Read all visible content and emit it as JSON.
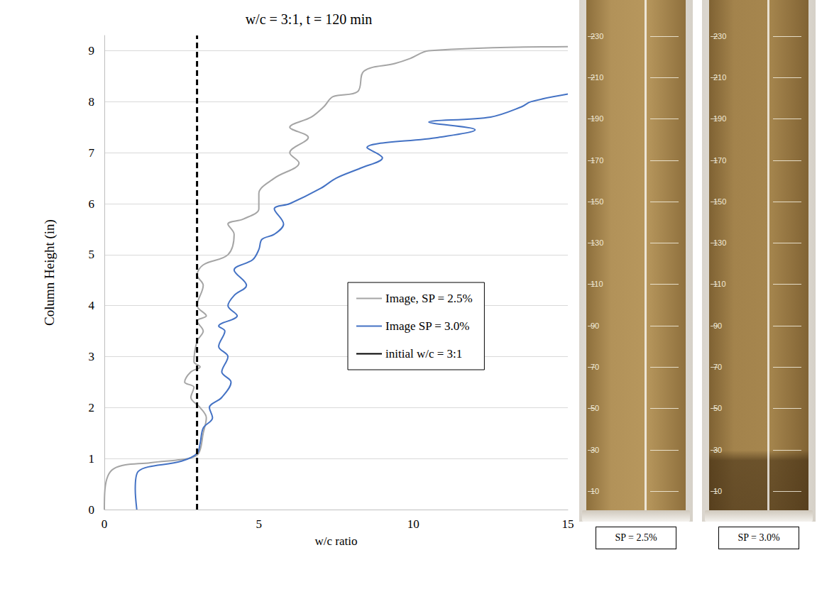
{
  "chart_data": {
    "type": "line",
    "title": "w/c = 3:1, t = 120 min",
    "x_label": "w/c ratio",
    "y_label": "Column Height (in)",
    "xlim": [
      0,
      15
    ],
    "xticks": [
      0,
      5,
      10,
      15
    ],
    "ylim": [
      0,
      9.3
    ],
    "yticks": [
      0,
      1,
      2,
      3,
      4,
      5,
      6,
      7,
      8,
      9
    ],
    "grid": true,
    "legend": "right",
    "series": [
      {
        "name": "Image, SP = 2.5%",
        "color": "#a5a5a5",
        "line_style": "solid",
        "x": [
          0,
          0.02,
          0.3,
          1.5,
          2.7,
          3.05,
          3.2,
          3.3,
          3.1,
          2.8,
          2.9,
          2.6,
          2.8,
          3.1,
          2.9,
          3.0,
          3.2,
          3.0,
          3.3,
          3.0,
          3.2,
          3.0,
          3.2,
          4.0,
          4.2,
          4.0,
          4.5,
          5.0,
          5.0,
          5.5,
          6.3,
          6.0,
          6.6,
          6.0,
          6.7,
          7.1,
          7.4,
          8.2,
          8.4,
          9.4,
          9.9,
          10.5,
          15
        ],
        "values": [
          0,
          0.4,
          0.8,
          0.92,
          1.0,
          1.1,
          1.5,
          1.8,
          2.0,
          2.2,
          2.4,
          2.5,
          2.7,
          2.8,
          2.9,
          3.3,
          3.5,
          3.7,
          3.8,
          4.0,
          4.4,
          4.6,
          4.8,
          5.0,
          5.4,
          5.6,
          5.7,
          5.9,
          6.2,
          6.5,
          6.8,
          7.0,
          7.3,
          7.5,
          7.7,
          7.9,
          8.1,
          8.2,
          8.6,
          8.75,
          8.85,
          9.0,
          9.08
        ]
      },
      {
        "name": "Image SP = 3.0%",
        "color": "#4472c4",
        "line_style": "solid",
        "x": [
          1.05,
          1.0,
          1.1,
          2.5,
          3.0,
          3.1,
          3.2,
          3.5,
          3.4,
          3.8,
          4.1,
          3.8,
          4.0,
          3.7,
          3.9,
          3.7,
          4.3,
          4.0,
          4.2,
          4.6,
          4.2,
          4.8,
          5.0,
          5.1,
          5.5,
          5.8,
          5.5,
          6.0,
          7.0,
          7.5,
          8.3,
          9.0,
          8.5,
          10.8,
          12.0,
          10.5,
          12.5,
          13.5,
          13.8,
          15
        ],
        "values": [
          0,
          0.4,
          0.75,
          0.95,
          1.1,
          1.3,
          1.6,
          1.8,
          2.0,
          2.2,
          2.5,
          2.7,
          3.0,
          3.2,
          3.5,
          3.6,
          3.8,
          4.0,
          4.2,
          4.4,
          4.7,
          4.9,
          5.1,
          5.3,
          5.4,
          5.6,
          5.9,
          6.0,
          6.3,
          6.5,
          6.7,
          6.9,
          7.1,
          7.3,
          7.45,
          7.6,
          7.7,
          7.9,
          8.0,
          8.15
        ]
      },
      {
        "name": "initial w/c = 3:1",
        "color": "#000000",
        "line_style": "dashed",
        "x": [
          3,
          3
        ],
        "values": [
          0,
          9.3
        ]
      }
    ]
  },
  "photos": [
    {
      "caption": "SP = 2.5%",
      "scale": [
        10,
        30,
        50,
        70,
        90,
        110,
        130,
        150,
        170,
        190,
        210,
        230
      ]
    },
    {
      "caption": "SP = 3.0%",
      "scale": [
        10,
        30,
        50,
        70,
        90,
        110,
        130,
        150,
        170,
        190,
        210,
        230
      ]
    }
  ]
}
